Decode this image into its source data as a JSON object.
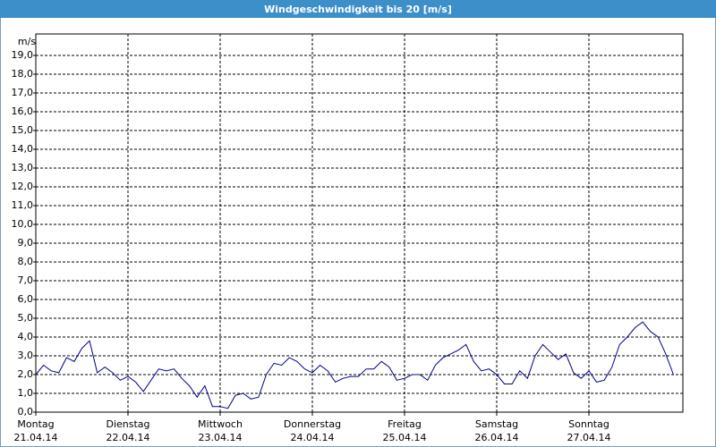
{
  "chart_data": {
    "type": "line",
    "title": "Windgeschwindigkeit bis 20 [m/s]",
    "y_label": "m/s",
    "xlim": [
      0,
      168
    ],
    "ylim": [
      0,
      20
    ],
    "grid": true,
    "xticks": [
      {
        "value": 0,
        "label": "Montag",
        "date": "21.04.14"
      },
      {
        "value": 24,
        "label": "Dienstag",
        "date": "22.04.14"
      },
      {
        "value": 48,
        "label": "Mittwoch",
        "date": "23.04.14"
      },
      {
        "value": 72,
        "label": "Donnerstag",
        "date": "24.04.14"
      },
      {
        "value": 96,
        "label": "Freitag",
        "date": "25.04.14"
      },
      {
        "value": 120,
        "label": "Samstag",
        "date": "26.04.14"
      },
      {
        "value": 144,
        "label": "Sonntag",
        "date": "27.04.14"
      }
    ],
    "yticks": [
      {
        "value": 0,
        "label": "0,0"
      },
      {
        "value": 1,
        "label": "1,0"
      },
      {
        "value": 2,
        "label": "2,0"
      },
      {
        "value": 3,
        "label": "3,0"
      },
      {
        "value": 4,
        "label": "4,0"
      },
      {
        "value": 5,
        "label": "5,0"
      },
      {
        "value": 6,
        "label": "6,0"
      },
      {
        "value": 7,
        "label": "7,0"
      },
      {
        "value": 8,
        "label": "8,0"
      },
      {
        "value": 9,
        "label": "9,0"
      },
      {
        "value": 10,
        "label": "10,0"
      },
      {
        "value": 11,
        "label": "11,0"
      },
      {
        "value": 12,
        "label": "12,0"
      },
      {
        "value": 13,
        "label": "13,0"
      },
      {
        "value": 14,
        "label": "14,0"
      },
      {
        "value": 15,
        "label": "15,0"
      },
      {
        "value": 16,
        "label": "16,0"
      },
      {
        "value": 17,
        "label": "17,0"
      },
      {
        "value": 18,
        "label": "18,0"
      },
      {
        "value": 19,
        "label": "19,0"
      }
    ],
    "x": [
      0,
      2,
      4,
      6,
      8,
      10,
      12,
      14,
      16,
      18,
      20,
      22,
      24,
      26,
      28,
      30,
      32,
      34,
      36,
      38,
      40,
      42,
      44,
      46,
      48,
      50,
      52,
      54,
      56,
      58,
      60,
      62,
      64,
      66,
      68,
      70,
      72,
      74,
      76,
      78,
      80,
      82,
      84,
      86,
      88,
      90,
      92,
      94,
      96,
      98,
      100,
      102,
      104,
      106,
      108,
      110,
      112,
      114,
      116,
      118,
      120,
      122,
      124,
      126,
      128,
      130,
      132,
      134,
      136,
      138,
      140,
      142,
      144,
      146,
      148,
      150,
      152,
      154,
      156,
      158,
      160,
      162,
      164,
      166
    ],
    "series": [
      {
        "color": "#00008b",
        "values": [
          2.0,
          2.5,
          2.2,
          2.1,
          2.9,
          2.7,
          3.4,
          3.8,
          2.1,
          2.4,
          2.1,
          1.7,
          1.9,
          1.6,
          1.1,
          1.7,
          2.3,
          2.2,
          2.3,
          1.8,
          1.4,
          0.8,
          1.4,
          0.3,
          0.3,
          0.2,
          0.9,
          1.0,
          0.7,
          0.8,
          2.0,
          2.6,
          2.5,
          2.9,
          2.7,
          2.3,
          2.1,
          2.5,
          2.2,
          1.6,
          1.8,
          1.9,
          1.9,
          2.3,
          2.3,
          2.7,
          2.4,
          1.7,
          1.8,
          2.0,
          2.0,
          1.7,
          2.5,
          2.9,
          3.1,
          3.3,
          3.6,
          2.7,
          2.2,
          2.3,
          2.0,
          1.5,
          1.5,
          2.2,
          1.8,
          3.0,
          3.6,
          3.2,
          2.8,
          3.1,
          2.1,
          1.8,
          2.2,
          1.6,
          1.7,
          2.4,
          3.6,
          4.0,
          4.5,
          4.8,
          4.3,
          4.0,
          3.1,
          2.0
        ]
      }
    ]
  }
}
